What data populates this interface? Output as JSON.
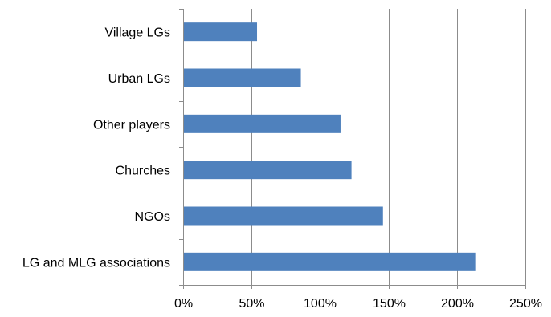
{
  "chart_data": {
    "type": "bar",
    "orientation": "horizontal",
    "categories": [
      "Village LGs",
      "Urban LGs",
      "Other players",
      "Churches",
      "NGOs",
      "LG and MLG associations"
    ],
    "values": [
      0.54,
      0.86,
      1.15,
      1.23,
      1.46,
      2.14
    ],
    "xlim": [
      0,
      2.5
    ],
    "xticks": [
      0,
      0.5,
      1.0,
      1.5,
      2.0,
      2.5
    ],
    "xtick_labels": [
      "0%",
      "50%",
      "100%",
      "150%",
      "200%",
      "250%"
    ],
    "title": "",
    "xlabel": "",
    "ylabel": "",
    "grid": "vertical",
    "legend": "none",
    "bar_color": "#4f81bd"
  }
}
